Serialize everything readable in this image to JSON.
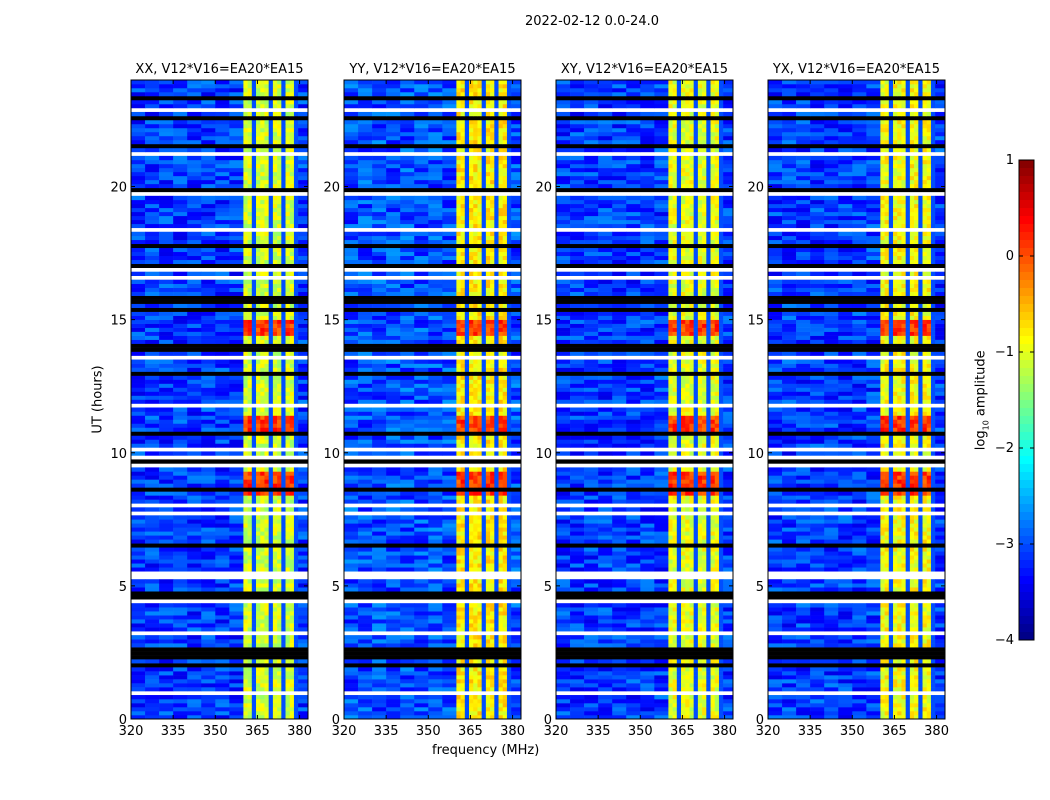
{
  "chart_data": {
    "type": "heatmap",
    "suptitle": "2022-02-12 0.0-24.0",
    "xlabel": "frequency (MHz)",
    "ylabel": "UT (hours)",
    "xlim": [
      320,
      383
    ],
    "ylim": [
      0,
      24
    ],
    "xticks": [
      "320",
      "335",
      "350",
      "365",
      "380"
    ],
    "xtick_values": [
      320,
      335,
      350,
      365,
      380
    ],
    "yticks": [
      "0",
      "5",
      "10",
      "15",
      "20"
    ],
    "ytick_values": [
      0,
      5,
      10,
      15,
      20
    ],
    "panels": [
      {
        "title": "XX, V12*V16=EA20*EA15",
        "band_level": -1.1,
        "bg_level": -3.1
      },
      {
        "title": "YY, V12*V16=EA20*EA15",
        "band_level": -0.8,
        "bg_level": -3.0
      },
      {
        "title": "XY, V12*V16=EA20*EA15",
        "band_level": -1.0,
        "bg_level": -3.1
      },
      {
        "title": "YX, V12*V16=EA20*EA15",
        "band_level": -0.9,
        "bg_level": -3.1
      }
    ],
    "band_mhz": [
      360,
      379.5
    ],
    "band_gaps_mhz": [
      364,
      369,
      374,
      378
    ],
    "hot_intervals_hours": [
      [
        8.4,
        9.2
      ],
      [
        14.3,
        15.0
      ],
      [
        10.8,
        11.4
      ]
    ],
    "black_intervals_hours": [
      [
        4.5,
        4.8
      ],
      [
        13.7,
        14.1
      ],
      [
        2.4,
        2.6
      ],
      [
        15.6,
        15.9
      ],
      [
        23.2,
        23.3
      ]
    ],
    "flag_interval_hours": [
      4.2,
      4.4
    ],
    "colorbar": {
      "label": "log10 amplitude",
      "label_base": "log",
      "label_sub": "10",
      "label_rest": " amplitude",
      "range": [
        -4,
        1
      ],
      "ticks": [
        "1",
        "0",
        "−1",
        "−2",
        "−3",
        "−4"
      ],
      "tick_values": [
        1,
        0,
        -1,
        -2,
        -3,
        -4
      ],
      "colormap": "jet"
    }
  }
}
